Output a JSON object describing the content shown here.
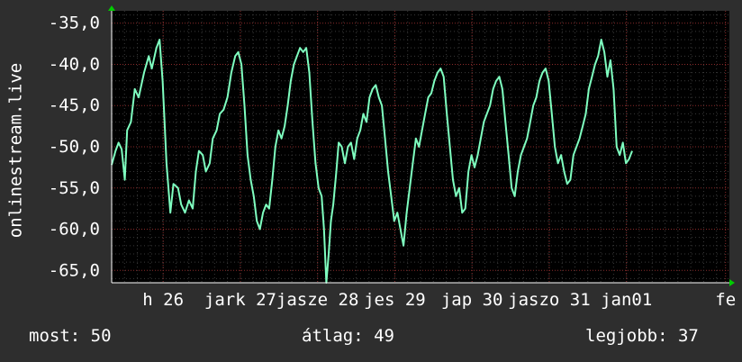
{
  "chart_data": {
    "type": "line",
    "ylabel": "onlinestream.live",
    "ylim": [
      -66.5,
      -33.5
    ],
    "yticks": [
      -35,
      -40,
      -45,
      -50,
      -55,
      -60,
      -65
    ],
    "ytick_labels": [
      "-35,0",
      "-40,0",
      "-45,0",
      "-50,0",
      "-55,0",
      "-60,0",
      "-65,0"
    ],
    "xlim": [
      0,
      8
    ],
    "xticks": [
      {
        "pos": 0.667,
        "label": "h 26"
      },
      {
        "pos": 1.667,
        "label": "jark 27"
      },
      {
        "pos": 2.667,
        "label": "jasze 28"
      },
      {
        "pos": 3.667,
        "label": "jes 29"
      },
      {
        "pos": 4.667,
        "label": "jap 30"
      },
      {
        "pos": 5.667,
        "label": "jaszo 31"
      },
      {
        "pos": 6.667,
        "label": "jan01"
      },
      {
        "pos": 7.95,
        "label": "fe"
      }
    ],
    "grid": true,
    "line_color": "#7fffc0",
    "series": [
      {
        "values": [
          [
            0.0,
            -52.2
          ],
          [
            0.05,
            -50.5
          ],
          [
            0.09,
            -49.5
          ],
          [
            0.13,
            -50.3
          ],
          [
            0.17,
            -54.0
          ],
          [
            0.2,
            -48.0
          ],
          [
            0.25,
            -47.0
          ],
          [
            0.3,
            -43.0
          ],
          [
            0.35,
            -44.0
          ],
          [
            0.42,
            -41.0
          ],
          [
            0.48,
            -39.0
          ],
          [
            0.52,
            -40.5
          ],
          [
            0.58,
            -38.0
          ],
          [
            0.62,
            -37.0
          ],
          [
            0.66,
            -42.0
          ],
          [
            0.71,
            -52.0
          ],
          [
            0.76,
            -58.0
          ],
          [
            0.8,
            -54.5
          ],
          [
            0.86,
            -55.0
          ],
          [
            0.9,
            -57.0
          ],
          [
            0.95,
            -58.0
          ],
          [
            1.0,
            -56.5
          ],
          [
            1.05,
            -57.5
          ],
          [
            1.09,
            -53.0
          ],
          [
            1.13,
            -50.5
          ],
          [
            1.18,
            -51.0
          ],
          [
            1.22,
            -53.0
          ],
          [
            1.27,
            -52.0
          ],
          [
            1.31,
            -49.0
          ],
          [
            1.36,
            -48.0
          ],
          [
            1.4,
            -46.0
          ],
          [
            1.45,
            -45.5
          ],
          [
            1.5,
            -44.0
          ],
          [
            1.55,
            -41.0
          ],
          [
            1.6,
            -39.0
          ],
          [
            1.64,
            -38.5
          ],
          [
            1.68,
            -40.0
          ],
          [
            1.72,
            -45.0
          ],
          [
            1.76,
            -51.0
          ],
          [
            1.8,
            -54.0
          ],
          [
            1.84,
            -56.0
          ],
          [
            1.88,
            -59.0
          ],
          [
            1.92,
            -60.0
          ],
          [
            1.96,
            -58.0
          ],
          [
            2.0,
            -57.0
          ],
          [
            2.04,
            -57.5
          ],
          [
            2.08,
            -54.0
          ],
          [
            2.12,
            -50.0
          ],
          [
            2.16,
            -48.0
          ],
          [
            2.2,
            -49.0
          ],
          [
            2.24,
            -47.5
          ],
          [
            2.28,
            -45.0
          ],
          [
            2.32,
            -42.0
          ],
          [
            2.36,
            -40.0
          ],
          [
            2.4,
            -39.0
          ],
          [
            2.44,
            -38.0
          ],
          [
            2.48,
            -38.5
          ],
          [
            2.52,
            -38.0
          ],
          [
            2.56,
            -41.0
          ],
          [
            2.6,
            -47.0
          ],
          [
            2.64,
            -52.0
          ],
          [
            2.68,
            -55.0
          ],
          [
            2.72,
            -56.0
          ],
          [
            2.75,
            -60.0
          ],
          [
            2.78,
            -66.5
          ],
          [
            2.81,
            -63.0
          ],
          [
            2.84,
            -59.0
          ],
          [
            2.87,
            -57.0
          ],
          [
            2.91,
            -53.0
          ],
          [
            2.94,
            -49.5
          ],
          [
            2.98,
            -50.0
          ],
          [
            3.02,
            -52.0
          ],
          [
            3.06,
            -50.0
          ],
          [
            3.1,
            -49.5
          ],
          [
            3.14,
            -51.5
          ],
          [
            3.18,
            -49.0
          ],
          [
            3.22,
            -48.0
          ],
          [
            3.26,
            -46.0
          ],
          [
            3.3,
            -47.0
          ],
          [
            3.34,
            -44.0
          ],
          [
            3.38,
            -43.0
          ],
          [
            3.42,
            -42.5
          ],
          [
            3.46,
            -44.0
          ],
          [
            3.5,
            -45.0
          ],
          [
            3.54,
            -49.0
          ],
          [
            3.58,
            -53.0
          ],
          [
            3.62,
            -56.0
          ],
          [
            3.66,
            -59.0
          ],
          [
            3.7,
            -58.0
          ],
          [
            3.74,
            -60.0
          ],
          [
            3.78,
            -62.0
          ],
          [
            3.82,
            -58.0
          ],
          [
            3.86,
            -55.0
          ],
          [
            3.9,
            -52.0
          ],
          [
            3.94,
            -49.0
          ],
          [
            3.98,
            -50.0
          ],
          [
            4.02,
            -48.0
          ],
          [
            4.06,
            -46.0
          ],
          [
            4.1,
            -44.0
          ],
          [
            4.14,
            -43.5
          ],
          [
            4.18,
            -42.0
          ],
          [
            4.22,
            -41.0
          ],
          [
            4.26,
            -40.5
          ],
          [
            4.3,
            -41.5
          ],
          [
            4.34,
            -46.0
          ],
          [
            4.38,
            -50.0
          ],
          [
            4.42,
            -54.0
          ],
          [
            4.46,
            -56.0
          ],
          [
            4.5,
            -55.0
          ],
          [
            4.54,
            -58.0
          ],
          [
            4.58,
            -57.5
          ],
          [
            4.62,
            -53.0
          ],
          [
            4.66,
            -51.0
          ],
          [
            4.7,
            -52.5
          ],
          [
            4.74,
            -51.0
          ],
          [
            4.78,
            -49.0
          ],
          [
            4.82,
            -47.0
          ],
          [
            4.86,
            -46.0
          ],
          [
            4.9,
            -45.0
          ],
          [
            4.94,
            -43.0
          ],
          [
            4.98,
            -42.0
          ],
          [
            5.02,
            -41.5
          ],
          [
            5.06,
            -43.0
          ],
          [
            5.1,
            -47.0
          ],
          [
            5.14,
            -51.0
          ],
          [
            5.18,
            -55.0
          ],
          [
            5.22,
            -56.0
          ],
          [
            5.26,
            -53.0
          ],
          [
            5.3,
            -51.0
          ],
          [
            5.34,
            -50.0
          ],
          [
            5.38,
            -49.0
          ],
          [
            5.42,
            -47.0
          ],
          [
            5.46,
            -45.0
          ],
          [
            5.5,
            -44.0
          ],
          [
            5.54,
            -42.0
          ],
          [
            5.58,
            -41.0
          ],
          [
            5.62,
            -40.5
          ],
          [
            5.66,
            -42.0
          ],
          [
            5.7,
            -46.0
          ],
          [
            5.74,
            -50.0
          ],
          [
            5.78,
            -52.0
          ],
          [
            5.82,
            -51.0
          ],
          [
            5.86,
            -53.0
          ],
          [
            5.9,
            -54.5
          ],
          [
            5.94,
            -54.0
          ],
          [
            5.98,
            -51.0
          ],
          [
            6.02,
            -50.0
          ],
          [
            6.06,
            -49.0
          ],
          [
            6.1,
            -47.5
          ],
          [
            6.14,
            -46.0
          ],
          [
            6.18,
            -43.0
          ],
          [
            6.22,
            -41.5
          ],
          [
            6.26,
            -40.0
          ],
          [
            6.3,
            -39.0
          ],
          [
            6.34,
            -37.0
          ],
          [
            6.38,
            -38.5
          ],
          [
            6.42,
            -41.5
          ],
          [
            6.46,
            -39.5
          ],
          [
            6.5,
            -43.0
          ],
          [
            6.54,
            -50.0
          ],
          [
            6.58,
            -51.0
          ],
          [
            6.62,
            -49.5
          ],
          [
            6.66,
            -52.0
          ],
          [
            6.7,
            -51.5
          ],
          [
            6.74,
            -50.5
          ]
        ]
      }
    ],
    "stats": {
      "current": "most: 50",
      "average": "átlag: 49",
      "best": "legjobb: 37"
    }
  }
}
